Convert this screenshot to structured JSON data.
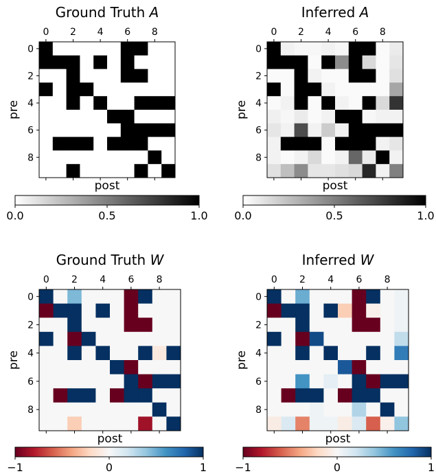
{
  "chart_data": [
    {
      "type": "heatmap",
      "title": "Ground Truth A",
      "title_main": "Ground Truth ",
      "title_var": "A",
      "xlabel": "post",
      "ylabel": "pre",
      "x_ticks": [
        "0",
        "2",
        "4",
        "6",
        "8"
      ],
      "y_ticks": [
        "0",
        "2",
        "4",
        "6",
        "8"
      ],
      "colormap": "binary",
      "colorbar_range": [
        0,
        1
      ],
      "colorbar_ticks": [
        "0.0",
        "0.5",
        "1.0"
      ],
      "matrix": [
        [
          1,
          0,
          0,
          0,
          0,
          0,
          1,
          1,
          0,
          0
        ],
        [
          1,
          1,
          1,
          0,
          1,
          0,
          1,
          0,
          0,
          0
        ],
        [
          0,
          0,
          1,
          0,
          0,
          0,
          1,
          1,
          0,
          0
        ],
        [
          1,
          0,
          1,
          1,
          0,
          0,
          0,
          0,
          0,
          0
        ],
        [
          0,
          0,
          1,
          0,
          1,
          0,
          0,
          1,
          1,
          1
        ],
        [
          0,
          0,
          0,
          0,
          0,
          1,
          1,
          0,
          0,
          0
        ],
        [
          0,
          0,
          0,
          0,
          0,
          0,
          1,
          1,
          1,
          1
        ],
        [
          0,
          1,
          1,
          1,
          0,
          1,
          1,
          1,
          0,
          0
        ],
        [
          0,
          0,
          0,
          0,
          0,
          0,
          0,
          0,
          1,
          0
        ],
        [
          0,
          0,
          1,
          0,
          0,
          0,
          0,
          1,
          0,
          1
        ]
      ]
    },
    {
      "type": "heatmap",
      "title": "Inferred A",
      "title_main": "Inferred ",
      "title_var": "A",
      "xlabel": "post",
      "ylabel": "pre",
      "x_ticks": [
        "0",
        "2",
        "4",
        "6",
        "8"
      ],
      "y_ticks": [
        "0",
        "2",
        "4",
        "6",
        "8"
      ],
      "colormap": "binary",
      "colorbar_range": [
        0,
        1
      ],
      "colorbar_ticks": [
        "0.0",
        "0.5",
        "1.0"
      ],
      "matrix": [
        [
          1,
          0.05,
          0.03,
          0.03,
          0.05,
          0.03,
          1,
          1,
          0.02,
          0.08
        ],
        [
          1,
          1,
          1,
          0.02,
          1,
          0.45,
          1,
          0.15,
          0.02,
          0.1
        ],
        [
          0.02,
          0.02,
          1,
          0.05,
          0.02,
          0.02,
          1,
          1,
          0.02,
          0.12
        ],
        [
          1,
          0.02,
          1,
          1,
          0.05,
          0.02,
          0.02,
          0.02,
          0.02,
          0.35
        ],
        [
          0.02,
          0.05,
          1,
          0.02,
          1,
          0.05,
          0.02,
          1,
          0.15,
          0.8
        ],
        [
          0.06,
          0.03,
          0.08,
          0.02,
          0.05,
          1,
          1,
          0.03,
          0.05,
          0.05
        ],
        [
          0.1,
          0.05,
          0.7,
          0.05,
          0.2,
          0.05,
          1,
          1,
          1,
          1
        ],
        [
          0.05,
          1,
          1,
          1,
          0.02,
          1,
          1,
          1,
          0.05,
          0.1
        ],
        [
          0.05,
          0.02,
          0.05,
          0.15,
          0.02,
          0.05,
          0.6,
          0.08,
          1,
          0.05
        ],
        [
          0.12,
          0.25,
          0.45,
          0.1,
          0.1,
          0.12,
          0.15,
          0.85,
          0.05,
          0.5
        ]
      ]
    },
    {
      "type": "heatmap",
      "title": "Ground Truth W",
      "title_main": "Ground Truth ",
      "title_var": "W",
      "xlabel": "post",
      "ylabel": "pre",
      "x_ticks": [
        "0",
        "2",
        "4",
        "6",
        "8"
      ],
      "y_ticks": [
        "0",
        "2",
        "4",
        "6",
        "8"
      ],
      "colormap": "RdBu",
      "colorbar_range": [
        -1,
        1
      ],
      "colorbar_ticks": [
        "−1",
        "0",
        "1"
      ],
      "matrix": [
        [
          1,
          0,
          0.45,
          0,
          0,
          0,
          -1,
          1,
          0,
          0
        ],
        [
          -1,
          1,
          1,
          0,
          1,
          0,
          -1,
          0,
          0,
          0
        ],
        [
          0,
          0,
          1,
          0,
          0,
          0,
          -1,
          -1,
          0,
          0
        ],
        [
          1,
          0,
          -1,
          1,
          0,
          0,
          0,
          0,
          0,
          0
        ],
        [
          0,
          0,
          1,
          0,
          1,
          0,
          0,
          1,
          -0.1,
          1
        ],
        [
          0,
          0,
          0,
          0,
          0,
          1,
          -1,
          0,
          0,
          0
        ],
        [
          0,
          0,
          0,
          0,
          0,
          0,
          1,
          -1,
          1,
          1
        ],
        [
          0,
          -1,
          1,
          1,
          0,
          -1,
          1,
          1,
          0,
          0
        ],
        [
          0,
          0,
          0,
          0,
          0,
          0,
          0,
          0,
          1,
          0
        ],
        [
          0,
          0,
          -0.25,
          0,
          0,
          0,
          0,
          -0.85,
          0,
          1
        ]
      ]
    },
    {
      "type": "heatmap",
      "title": "Inferred W",
      "title_main": "Inferred ",
      "title_var": "W",
      "xlabel": "post",
      "ylabel": "pre",
      "x_ticks": [
        "0",
        "2",
        "4",
        "6",
        "8"
      ],
      "y_ticks": [
        "0",
        "2",
        "4",
        "6",
        "8"
      ],
      "colormap": "RdBu",
      "colorbar_range": [
        -1,
        1
      ],
      "colorbar_ticks": [
        "−1",
        "0",
        "1"
      ],
      "matrix": [
        [
          1,
          0,
          0.5,
          0,
          0,
          0,
          -1,
          1,
          0,
          0.05
        ],
        [
          -1,
          1,
          1,
          0,
          1,
          -0.25,
          -1,
          -0.05,
          0,
          0.05
        ],
        [
          0,
          0,
          1,
          0,
          0,
          0,
          -1,
          -1,
          0,
          0.05
        ],
        [
          1,
          0,
          -1,
          0.9,
          0,
          0,
          0,
          0,
          0,
          0.25
        ],
        [
          0,
          0,
          1,
          0,
          1,
          0,
          0,
          1,
          0,
          0.7
        ],
        [
          0,
          0,
          0,
          0,
          0,
          0.85,
          -1,
          0,
          0,
          0
        ],
        [
          0,
          0,
          0.6,
          0,
          0.1,
          0,
          1,
          -1,
          1,
          1
        ],
        [
          0,
          -1,
          1,
          1,
          0,
          -1,
          1,
          1,
          0,
          0
        ],
        [
          0,
          0,
          0,
          0.05,
          0,
          0,
          0.3,
          0,
          1,
          0
        ],
        [
          -0.08,
          0.15,
          -0.5,
          0.05,
          0.05,
          -0.08,
          0.15,
          -0.6,
          -0.05,
          0.4
        ]
      ]
    }
  ]
}
